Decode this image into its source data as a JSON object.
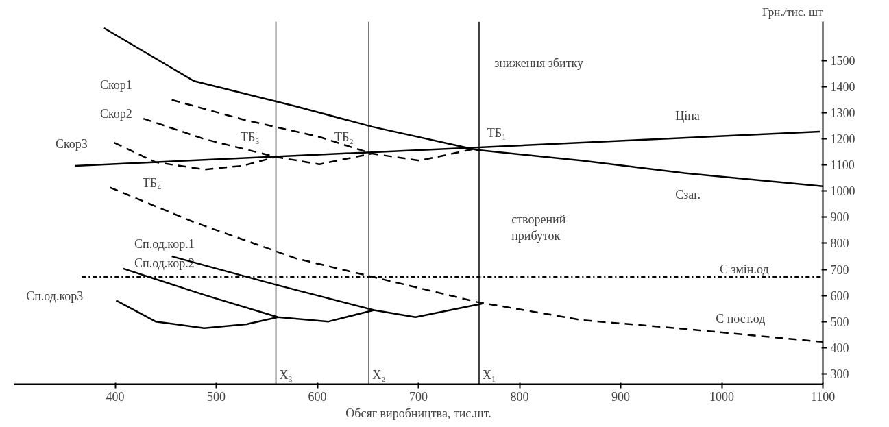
{
  "chart_data": {
    "type": "line",
    "xlabel": "Обсяг виробництва, тис.шт.",
    "ylabel": "Грн./тис. шт",
    "xlim": [
      300,
      1100
    ],
    "ylim": [
      260,
      1650
    ],
    "xticks": [
      400,
      500,
      600,
      700,
      800,
      900,
      1000,
      1100
    ],
    "yticks": [
      300,
      400,
      500,
      600,
      700,
      800,
      900,
      1000,
      1100,
      1200,
      1300,
      1400,
      1500
    ],
    "grid": false,
    "series": [
      {
        "color": "#000000",
        "line_style": "solid",
        "x": [
          389,
          478,
          579,
          654,
          758,
          861,
          963,
          1100
        ],
        "values": [
          1625,
          1422,
          1325,
          1247,
          1158,
          1117,
          1069,
          1019
        ]
      },
      {
        "color": "#000000",
        "line_style": "solid",
        "x": [
          360,
          1097
        ],
        "values": [
          1097,
          1228
        ]
      },
      {
        "color": "#000000",
        "line_style": "dashed",
        "x": [
          395,
          478,
          579,
          654,
          758,
          861,
          963,
          1100
        ],
        "values": [
          1014,
          881,
          742,
          672,
          575,
          506,
          472,
          422
        ]
      },
      {
        "color": "#000000",
        "line_style": "dashdot",
        "x": [
          367,
          1100
        ],
        "values": [
          672,
          672
        ]
      },
      {
        "color": "#000000",
        "line_style": "dashed",
        "x": [
          456,
          526,
          602,
          654,
          701,
          758
        ],
        "values": [
          1350,
          1275,
          1208,
          1144,
          1117,
          1164
        ]
      },
      {
        "color": "#000000",
        "line_style": "dashed",
        "x": [
          428,
          488,
          559,
          602,
          654
        ],
        "values": [
          1278,
          1200,
          1131,
          1103,
          1144
        ]
      },
      {
        "color": "#000000",
        "line_style": "dashed",
        "x": [
          399,
          440,
          488,
          526,
          559
        ],
        "values": [
          1186,
          1111,
          1083,
          1097,
          1131
        ]
      },
      {
        "color": "#000000",
        "line_style": "solid",
        "x": [
          456,
          560,
          656,
          697,
          763
        ],
        "values": [
          750,
          640,
          544,
          517,
          569
        ]
      },
      {
        "color": "#000000",
        "line_style": "solid",
        "x": [
          408,
          490,
          561,
          611,
          656
        ],
        "values": [
          703,
          600,
          517,
          500,
          544
        ]
      },
      {
        "color": "#000000",
        "line_style": "solid",
        "x": [
          401,
          440,
          488,
          530,
          561
        ],
        "values": [
          581,
          500,
          475,
          490,
          517
        ]
      }
    ],
    "ref_lines": [
      {
        "axis": "x",
        "value": 559,
        "label": "X₃"
      },
      {
        "axis": "x",
        "value": 651,
        "label": "X₂"
      },
      {
        "axis": "x",
        "value": 760,
        "label": "X₁"
      }
    ],
    "annotations": [
      "Скор1",
      "Скор2",
      "Скор3",
      "ТБ₁",
      "ТБ₂",
      "ТБ₃",
      "ТБ₄",
      "зниження збитку",
      "створений\nприбуток",
      "Ціна",
      "Сзаг.",
      "С змін.од",
      "С пост.од",
      "Сп.од.кор.1",
      "Сп.од.кор.2",
      "Сп.од.кор3"
    ]
  }
}
